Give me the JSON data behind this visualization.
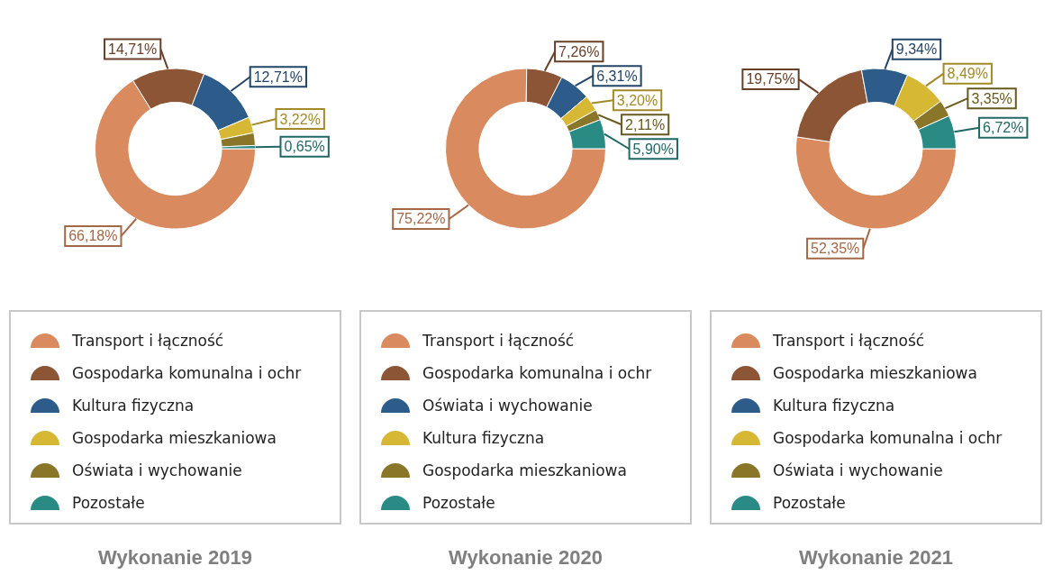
{
  "chart_data": [
    {
      "type": "donut",
      "title": "Wykonanie 2019",
      "categories": [
        "Transport i łączność",
        "Gospodarka komunalna i ochr",
        "Kultura fizyczna",
        "Gospodarka mieszkaniowa",
        "Oświata i wychowanie",
        "Pozostałe"
      ],
      "values": [
        66.18,
        14.71,
        12.71,
        3.22,
        2.53,
        0.65
      ],
      "colors": [
        "#d98b5f",
        "#8b5536",
        "#2e5c8a",
        "#d6b834",
        "#8a7628",
        "#2a8b85"
      ],
      "value_labels": [
        "66,18%",
        "14,71%",
        "12,71%",
        "3,22%",
        null,
        "0,65%"
      ],
      "legend": "bottom"
    },
    {
      "type": "donut",
      "title": "Wykonanie 2020",
      "categories": [
        "Transport i łączność",
        "Gospodarka komunalna i ochr",
        "Oświata i wychowanie",
        "Kultura fizyczna",
        "Gospodarka mieszkaniowa",
        "Pozostałe"
      ],
      "values": [
        75.22,
        7.26,
        6.31,
        3.2,
        2.11,
        5.9
      ],
      "colors": [
        "#d98b5f",
        "#8b5536",
        "#2e5c8a",
        "#d6b834",
        "#8a7628",
        "#2a8b85"
      ],
      "value_labels": [
        "75,22%",
        "7,26%",
        "6,31%",
        "3,20%",
        "2,11%",
        "5,90%"
      ],
      "legend": "bottom"
    },
    {
      "type": "donut",
      "title": "Wykonanie 2021",
      "categories": [
        "Transport i łączność",
        "Gospodarka mieszkaniowa",
        "Kultura fizyczna",
        "Gospodarka komunalna i ochr",
        "Oświata i wychowanie",
        "Pozostałe"
      ],
      "values": [
        52.35,
        19.75,
        9.34,
        8.49,
        3.35,
        6.72
      ],
      "colors": [
        "#d98b5f",
        "#8b5536",
        "#2e5c8a",
        "#d6b834",
        "#8a7628",
        "#2a8b85"
      ],
      "value_labels": [
        "52,35%",
        "19,75%",
        "9,34%",
        "8,49%",
        "3,35%",
        "6,72%"
      ],
      "legend": "bottom"
    }
  ]
}
